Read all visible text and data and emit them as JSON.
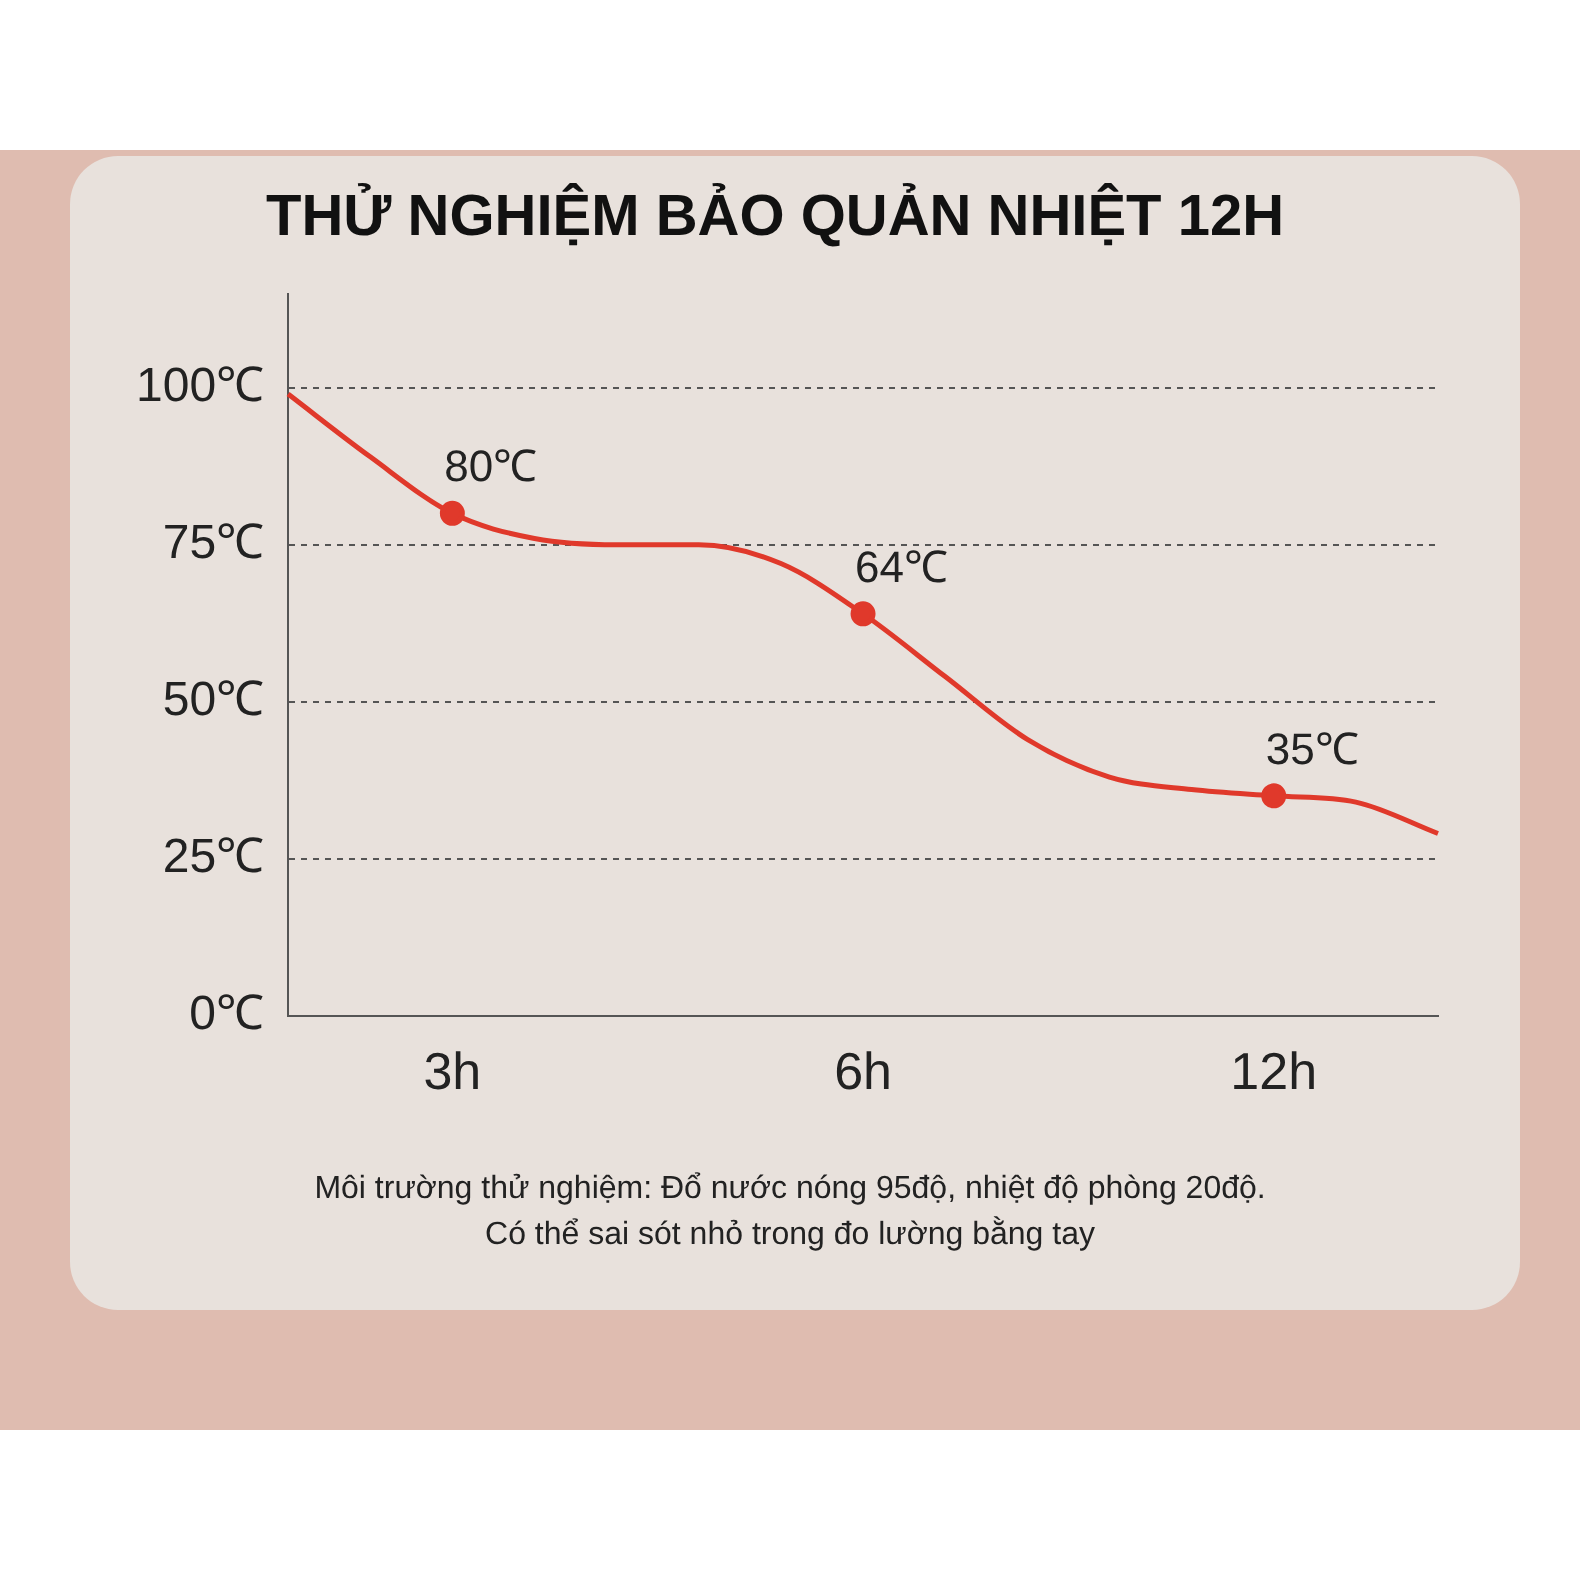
{
  "chart_data": {
    "type": "line",
    "title": "THỬ NGHIỆM BẢO QUẢN NHIỆT 12H",
    "categories": [
      null,
      null,
      "3h",
      null,
      null,
      null,
      null,
      "6h",
      null,
      null,
      null,
      null,
      "12h",
      null,
      null
    ],
    "series": [
      {
        "color": "#e0392b",
        "values": [
          99,
          89,
          80,
          76,
          75,
          75,
          72,
          64,
          54,
          44,
          38,
          36,
          35,
          34,
          29
        ],
        "value_labels": [
          null,
          null,
          "80℃",
          null,
          null,
          null,
          null,
          "64℃",
          null,
          null,
          null,
          null,
          "35℃",
          null,
          null
        ]
      }
    ],
    "ylim": [
      0,
      115
    ],
    "yticks": [
      {
        "value": 0,
        "label": "0℃"
      },
      {
        "value": 25,
        "label": "25℃"
      },
      {
        "value": 50,
        "label": "50℃"
      },
      {
        "value": 75,
        "label": "75℃"
      },
      {
        "value": 100,
        "label": "100℃"
      }
    ],
    "grid": "y",
    "line_style": "solid",
    "annotations": [
      "Môi trường thử nghiệm: Đổ nước nóng 95độ, nhiệt độ phòng 20độ.",
      "Có thể sai sót nhỏ trong đo lường bằng tay"
    ]
  }
}
